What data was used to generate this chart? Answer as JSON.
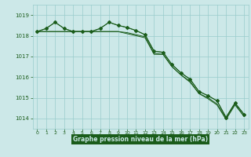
{
  "title": "Graphe pression niveau de la mer (hPa)",
  "background_color": "#cce8e8",
  "grid_color": "#99cccc",
  "line_color": "#1a5c1a",
  "text_color": "#1a5c1a",
  "xlabel_bg": "#1a5c1a",
  "xlabel_fg": "#cce8e8",
  "xlim": [
    -0.5,
    23.5
  ],
  "ylim": [
    1013.5,
    1019.5
  ],
  "yticks": [
    1014,
    1015,
    1016,
    1017,
    1018,
    1019
  ],
  "xtick_labels": [
    "0",
    "1",
    "2",
    "3",
    "4",
    "5",
    "6",
    "7",
    "8",
    "9",
    "10",
    "11",
    "12",
    "13",
    "14",
    "15",
    "16",
    "17",
    "18",
    "19",
    "20",
    "21",
    "22",
    "23"
  ],
  "series": [
    [
      1018.2,
      1018.35,
      1018.65,
      1018.35,
      1018.2,
      1018.2,
      1018.2,
      1018.35,
      1018.65,
      1018.5,
      1018.4,
      1018.25,
      1018.05,
      1017.25,
      1017.2,
      1016.6,
      1016.2,
      1015.9,
      1015.3,
      1015.1,
      1014.85,
      1014.05,
      1014.75,
      1014.2
    ],
    [
      1018.2,
      1018.2,
      1018.2,
      1018.2,
      1018.2,
      1018.2,
      1018.2,
      1018.2,
      1018.2,
      1018.2,
      1018.15,
      1018.05,
      1017.95,
      1017.15,
      1017.1,
      1016.5,
      1016.1,
      1015.75,
      1015.2,
      1014.95,
      1014.65,
      1013.95,
      1014.65,
      1014.1
    ],
    [
      1018.2,
      1018.2,
      1018.2,
      1018.2,
      1018.2,
      1018.2,
      1018.2,
      1018.2,
      1018.2,
      1018.2,
      1018.1,
      1018.0,
      1017.9,
      1017.1,
      1017.1,
      1016.5,
      1016.1,
      1015.8,
      1015.2,
      1015.0,
      1014.7,
      1014.0,
      1014.7,
      1014.1
    ],
    [
      1018.2,
      1018.35,
      1018.65,
      1018.35,
      1018.2,
      1018.2,
      1018.2,
      1018.35,
      1018.65,
      1018.5,
      1018.4,
      1018.25,
      1018.05,
      1017.25,
      1017.2,
      1016.6,
      1016.2,
      1015.9,
      1015.3,
      1015.1,
      1014.85,
      1014.05,
      1014.75,
      1014.2
    ]
  ]
}
